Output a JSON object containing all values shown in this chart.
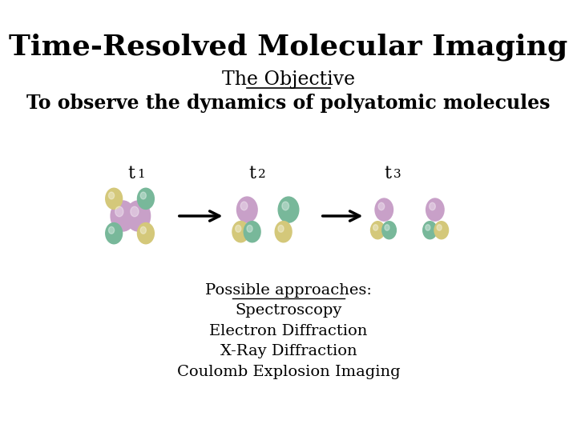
{
  "title": "Time-Resolved Molecular Imaging",
  "subtitle": "The Objective",
  "objective_text": "To observe the dynamics of polyatomic molecules",
  "approaches_header": "Possible approaches:",
  "approaches": [
    "Spectroscopy",
    "Electron Diffraction",
    "X-Ray Diffraction",
    "Coulomb Explosion Imaging"
  ],
  "background_color": "#ffffff",
  "title_fontsize": 26,
  "subtitle_fontsize": 17,
  "objective_fontsize": 17,
  "approaches_fontsize": 14,
  "molecule_colors": {
    "pink": "#c8a0c8",
    "yellow": "#d4c87a",
    "green": "#78b89a"
  }
}
